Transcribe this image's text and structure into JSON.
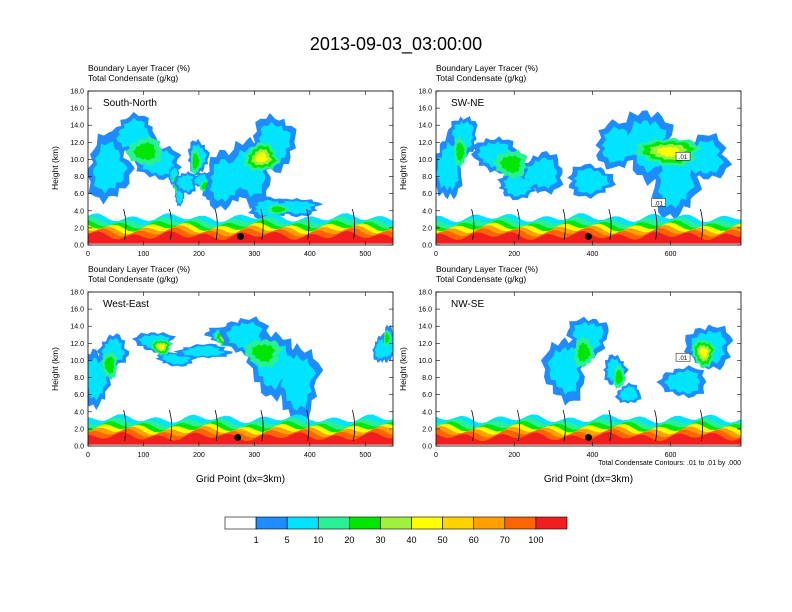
{
  "title": "2013-09-03_03:00:00",
  "colors": {
    "levels": [
      "#ffffff",
      "#1e8cff",
      "#00e4ff",
      "#28f096",
      "#00e600",
      "#a0f03c",
      "#ffff00",
      "#ffd200",
      "#ffa000",
      "#ff6400",
      "#f01e1e"
    ],
    "contour": "#000000",
    "marker": "#000000"
  },
  "colorbar": {
    "labels": [
      "1",
      "5",
      "10",
      "20",
      "30",
      "40",
      "50",
      "60",
      "70",
      "100"
    ]
  },
  "contour_note": "Total Condensate Contours: .01 to .01 by .000",
  "chart_data": [
    {
      "type": "heatmap",
      "panel_label": "South-North",
      "subtitle_lines": [
        "Boundary Layer Tracer   (%)",
        "Total Condensate   (g/kg)"
      ],
      "ylabel": "Height (km)",
      "xlabel": "",
      "ylim": [
        0,
        18
      ],
      "yticks": [
        "0.0",
        "2.0",
        "4.0",
        "6.0",
        "8.0",
        "10.0",
        "12.0",
        "14.0",
        "16.0",
        "18.0"
      ],
      "xlim": [
        0,
        550
      ],
      "xticks": [
        0,
        100,
        200,
        300,
        400,
        500
      ],
      "marker": {
        "x": 275,
        "y": 1.0
      },
      "contour_labels": [],
      "features": [
        {
          "name": "bl",
          "x": [
            0,
            550
          ],
          "y": [
            0,
            3
          ],
          "level": 7
        },
        {
          "name": "anvil",
          "x": [
            15,
            150
          ],
          "y": [
            3,
            14
          ],
          "level": 3
        },
        {
          "name": "anvil",
          "x": [
            150,
            170
          ],
          "y": [
            3,
            9
          ],
          "level": 3
        },
        {
          "name": "anvil",
          "x": [
            165,
            210
          ],
          "y": [
            4,
            12
          ],
          "level": 3
        },
        {
          "name": "anvil",
          "x": [
            195,
            235
          ],
          "y": [
            4,
            8
          ],
          "level": 3
        },
        {
          "name": "anvil",
          "x": [
            225,
            360
          ],
          "y": [
            3,
            13
          ],
          "level": 4
        },
        {
          "name": "anvil",
          "x": [
            305,
            400
          ],
          "y": [
            2,
            5
          ],
          "level": 3
        }
      ]
    },
    {
      "type": "heatmap",
      "panel_label": "SW-NE",
      "subtitle_lines": [
        "Boundary Layer Tracer   (%)",
        "Total Condensate   (g/kg)"
      ],
      "ylabel": "Height (km)",
      "xlabel": "",
      "ylim": [
        0,
        18
      ],
      "yticks": [
        "0.0",
        "2.0",
        "4.0",
        "6.0",
        "8.0",
        "10.0",
        "12.0",
        "14.0",
        "16.0",
        "18.0"
      ],
      "xlim": [
        0,
        780
      ],
      "xticks": [
        0,
        200,
        400,
        600
      ],
      "marker": {
        "x": 390,
        "y": 1.0
      },
      "contour_labels": [
        ".01",
        ".01"
      ],
      "features": [
        {
          "name": "bl",
          "x": [
            0,
            780
          ],
          "y": [
            0,
            3
          ],
          "level": 7
        },
        {
          "name": "anvil",
          "x": [
            10,
            90
          ],
          "y": [
            3,
            14
          ],
          "level": 3
        },
        {
          "name": "anvil",
          "x": [
            120,
            300
          ],
          "y": [
            3,
            12
          ],
          "level": 3
        },
        {
          "name": "anvil",
          "x": [
            360,
            720
          ],
          "y": [
            3,
            14
          ],
          "level": 4
        }
      ]
    },
    {
      "type": "heatmap",
      "panel_label": "West-East",
      "subtitle_lines": [
        "Boundary Layer Tracer   (%)",
        "Total Condensate   (g/kg)"
      ],
      "ylabel": "Height (km)",
      "xlabel": "Grid Point (dx=3km)",
      "ylim": [
        0,
        18
      ],
      "yticks": [
        "0.0",
        "2.0",
        "4.0",
        "6.0",
        "8.0",
        "10.0",
        "12.0",
        "14.0",
        "16.0",
        "18.0"
      ],
      "xlim": [
        0,
        550
      ],
      "xticks": [
        0,
        100,
        200,
        300,
        400,
        500
      ],
      "marker": {
        "x": 270,
        "y": 1.0
      },
      "contour_labels": [],
      "features": [
        {
          "name": "bl",
          "x": [
            0,
            550
          ],
          "y": [
            0,
            3
          ],
          "level": 7
        },
        {
          "name": "anvil",
          "x": [
            0,
            60
          ],
          "y": [
            3,
            12
          ],
          "level": 3
        },
        {
          "name": "anvil",
          "x": [
            100,
            180
          ],
          "y": [
            8,
            13
          ],
          "level": 4
        },
        {
          "name": "anvil",
          "x": [
            180,
            290
          ],
          "y": [
            9,
            14
          ],
          "level": 4
        },
        {
          "name": "anvil",
          "x": [
            260,
            400
          ],
          "y": [
            3,
            14
          ],
          "level": 3
        },
        {
          "name": "anvil",
          "x": [
            520,
            550
          ],
          "y": [
            9,
            14
          ],
          "level": 3
        }
      ]
    },
    {
      "type": "heatmap",
      "panel_label": "NW-SE",
      "subtitle_lines": [
        "Boundary Layer Tracer   (%)",
        "Total Condensate   (g/kg)"
      ],
      "ylabel": "Height (km)",
      "xlabel": "Grid Point (dx=3km)",
      "ylim": [
        0,
        18
      ],
      "yticks": [
        "0.0",
        "2.0",
        "4.0",
        "6.0",
        "8.0",
        "10.0",
        "12.0",
        "14.0",
        "16.0",
        "18.0"
      ],
      "xlim": [
        0,
        780
      ],
      "xticks": [
        0,
        200,
        400,
        600
      ],
      "marker": {
        "x": 390,
        "y": 1.0
      },
      "contour_labels": [
        ".01"
      ],
      "features": [
        {
          "name": "bl",
          "x": [
            0,
            780
          ],
          "y": [
            0,
            3
          ],
          "level": 7
        },
        {
          "name": "anvil",
          "x": [
            300,
            420
          ],
          "y": [
            3,
            14
          ],
          "level": 3
        },
        {
          "name": "anvil",
          "x": [
            440,
            510
          ],
          "y": [
            3,
            10
          ],
          "level": 3
        },
        {
          "name": "anvil",
          "x": [
            600,
            730
          ],
          "y": [
            3,
            14
          ],
          "level": 4
        }
      ]
    }
  ]
}
